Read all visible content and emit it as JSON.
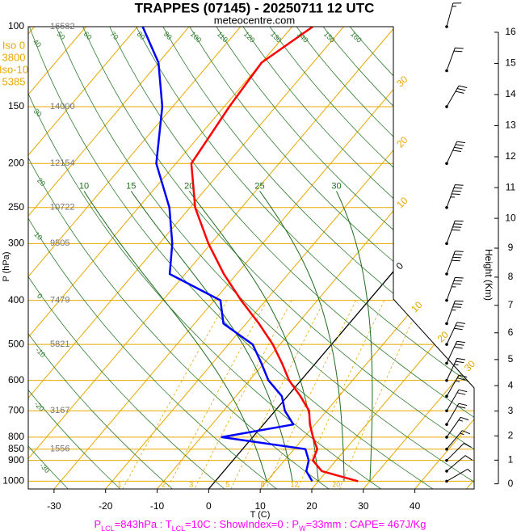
{
  "chart_data": {
    "type": "skewt",
    "title": "TRAPPES (07145) - 20250711 12 UTC",
    "subtitle": "meteocentre.com",
    "xlabel": "T (C)",
    "ylabel": "P (hPa)",
    "y2label": "Height (Km)",
    "ylim": [
      100,
      1040
    ],
    "yticks": [
      100,
      150,
      200,
      250,
      300,
      400,
      500,
      600,
      700,
      800,
      850,
      900,
      1000
    ],
    "xlim": [
      -35,
      51.5
    ],
    "xticks": [
      -30,
      -20,
      -10,
      0,
      10,
      20,
      30,
      40
    ],
    "y2ticks": [
      0,
      1,
      2,
      3,
      4,
      5,
      6,
      7,
      8,
      9,
      10,
      11,
      12,
      13,
      14,
      15,
      16
    ],
    "isotherms": [
      -110,
      -100,
      -90,
      -80,
      -70,
      -60,
      -50,
      -40,
      -30,
      -20,
      -10,
      0,
      10,
      20,
      30,
      40,
      50
    ],
    "isotherm_labels": [
      {
        "value": -30,
        "label": "30"
      },
      {
        "value": -20,
        "label": "20"
      },
      {
        "value": -10,
        "label": "10"
      },
      0,
      10,
      20,
      30
    ],
    "dry_adiabats": [
      -30,
      -20,
      -10,
      0,
      10,
      20,
      30,
      40,
      50,
      60,
      70,
      80,
      90,
      100,
      110,
      120,
      130,
      140,
      150,
      160
    ],
    "moist_adiabats": [
      10,
      15,
      20,
      25,
      30
    ],
    "mixing_ratios": [
      1,
      2,
      3,
      5,
      8,
      12,
      20
    ],
    "pressure": [
      1000,
      950,
      900,
      850,
      800,
      750,
      700,
      650,
      600,
      550,
      500,
      450,
      400,
      350,
      300,
      250,
      200,
      150,
      120,
      100
    ],
    "series": [
      {
        "color": "#ff0000",
        "values": [
          27.7,
          19,
          15.5,
          14.5,
          11.7,
          9,
          6.6,
          2.5,
          -2.3,
          -6.5,
          -11.4,
          -17.5,
          -24.8,
          -32.5,
          -40.5,
          -49,
          -57,
          -59,
          -60,
          -56
        ]
      },
      {
        "color": "#0000ff",
        "values": [
          18.8,
          16,
          14.7,
          12.2,
          -6,
          5.8,
          1.9,
          -1.1,
          -6.3,
          -10.5,
          -15.3,
          -24.4,
          -28.8,
          -43,
          -47.5,
          -54,
          -63.8,
          -72,
          -80,
          -89
        ]
      }
    ],
    "heights": {
      "pressure": [
        100,
        150,
        200,
        250,
        300,
        400,
        500,
        700,
        850
      ],
      "values": [
        16582,
        14000,
        12154,
        10722,
        9505,
        7479,
        5821,
        3167,
        1556
      ]
    },
    "iso_levels": [
      {
        "label": "Iso 0",
        "height": 3800
      },
      {
        "label": "Iso-10",
        "height": 5385
      }
    ],
    "winds": {
      "pressure": [
        1000,
        950,
        900,
        850,
        800,
        750,
        700,
        650,
        600,
        550,
        500,
        450,
        400,
        350,
        300,
        250,
        200,
        150,
        125,
        100
      ],
      "direction": [
        60,
        50,
        45,
        40,
        35,
        30,
        30,
        30,
        25,
        25,
        25,
        20,
        20,
        20,
        20,
        20,
        25,
        30,
        20,
        15
      ],
      "speed": [
        5,
        10,
        10,
        15,
        15,
        20,
        20,
        25,
        25,
        30,
        30,
        35,
        35,
        40,
        40,
        45,
        40,
        30,
        20,
        15
      ]
    },
    "footer": [
      "P",
      "LCL",
      "=843hPa : T",
      "LCL",
      "=10C : ShowIndex=0 : P",
      "W",
      "=33mm : CAPE= 467J/Kg"
    ]
  }
}
